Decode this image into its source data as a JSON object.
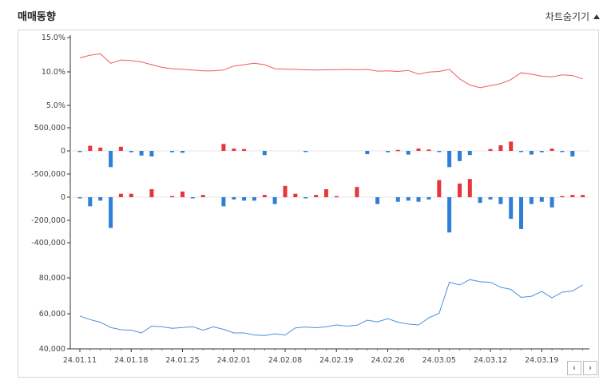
{
  "header": {
    "title": "매매동향",
    "toggle_label": "차트숨기기",
    "toggle_icon": "triangle-up-icon"
  },
  "nav": {
    "prev_label": "‹",
    "next_label": "›"
  },
  "colors": {
    "price_line": "#f05a5a",
    "volume_line": "#4a90d9",
    "positive": "#e8353b",
    "negative": "#2f7fd6",
    "axis": "#333333",
    "grid": "#cccccc"
  },
  "chart_data": [
    {
      "type": "line",
      "name": "ratio",
      "ylim": [
        5,
        15
      ],
      "yticks": [
        "15.0%",
        "10.0%",
        "5.0%"
      ],
      "ytick_values": [
        15,
        10,
        5
      ],
      "values": [
        12.0,
        12.4,
        12.6,
        11.2,
        11.7,
        11.6,
        11.4,
        11.0,
        10.6,
        10.4,
        10.3,
        10.2,
        10.1,
        10.1,
        10.2,
        10.8,
        11.0,
        11.2,
        11.0,
        10.4,
        10.35,
        10.3,
        10.25,
        10.2,
        10.25,
        10.25,
        10.3,
        10.25,
        10.3,
        10.05,
        10.1,
        10.0,
        10.15,
        9.6,
        9.9,
        10.0,
        10.3,
        8.9,
        8.0,
        7.6,
        7.9,
        8.2,
        8.8,
        9.8,
        9.6,
        9.3,
        9.2,
        9.5,
        9.4,
        8.9
      ]
    },
    {
      "type": "bar",
      "name": "net1",
      "ylim": [
        -700000,
        700000
      ],
      "yticks": [
        "500,000",
        "0",
        "-500,000"
      ],
      "ytick_values": [
        500000,
        0,
        -500000
      ],
      "values": [
        -20000,
        110000,
        70000,
        -350000,
        90000,
        -30000,
        -100000,
        -120000,
        0,
        -30000,
        -40000,
        0,
        0,
        0,
        150000,
        50000,
        40000,
        0,
        -90000,
        0,
        0,
        0,
        -20000,
        0,
        0,
        0,
        0,
        0,
        -70000,
        0,
        -30000,
        20000,
        -80000,
        50000,
        30000,
        -10000,
        -350000,
        -220000,
        -90000,
        0,
        40000,
        120000,
        200000,
        -20000,
        -80000,
        -30000,
        50000,
        -20000,
        -120000,
        0
      ]
    },
    {
      "type": "bar",
      "name": "net2",
      "ylim": [
        -500000,
        200000
      ],
      "yticks": [
        "0",
        "-200,000",
        "-400,000"
      ],
      "ytick_values": [
        0,
        -200000,
        -400000
      ],
      "values": [
        -5000,
        -80000,
        -30000,
        -270000,
        30000,
        30000,
        0,
        70000,
        0,
        10000,
        50000,
        -10000,
        20000,
        0,
        -80000,
        -20000,
        -30000,
        -30000,
        20000,
        -60000,
        100000,
        30000,
        -10000,
        20000,
        70000,
        10000,
        0,
        90000,
        0,
        -60000,
        0,
        -40000,
        -30000,
        -40000,
        -20000,
        150000,
        -310000,
        120000,
        160000,
        -50000,
        -20000,
        -60000,
        -190000,
        -280000,
        -60000,
        -40000,
        -90000,
        10000,
        20000,
        20000
      ]
    },
    {
      "type": "line",
      "name": "price",
      "ylim": [
        40000,
        90000
      ],
      "yticks": [
        "80,000",
        "60,000",
        "40,000"
      ],
      "ytick_values": [
        80000,
        60000,
        40000
      ],
      "x_labels": [
        "24.01.11",
        "24.01.18",
        "24.01.25",
        "24.02.01",
        "24.02.08",
        "24.02.19",
        "24.02.26",
        "24.03.05",
        "24.03.12",
        "24.03.19"
      ],
      "values": [
        58500,
        56500,
        55000,
        52000,
        50800,
        50500,
        49000,
        52800,
        52500,
        51600,
        52000,
        52500,
        50500,
        52400,
        51000,
        49000,
        49000,
        47800,
        47500,
        48500,
        47800,
        51800,
        52300,
        51900,
        52500,
        53500,
        52800,
        53300,
        56200,
        55200,
        57000,
        55000,
        54000,
        53500,
        57500,
        60000,
        77500,
        76000,
        79000,
        77800,
        77500,
        74700,
        73500,
        69000,
        69600,
        72300,
        68700,
        71900,
        72600,
        76000
      ]
    }
  ]
}
